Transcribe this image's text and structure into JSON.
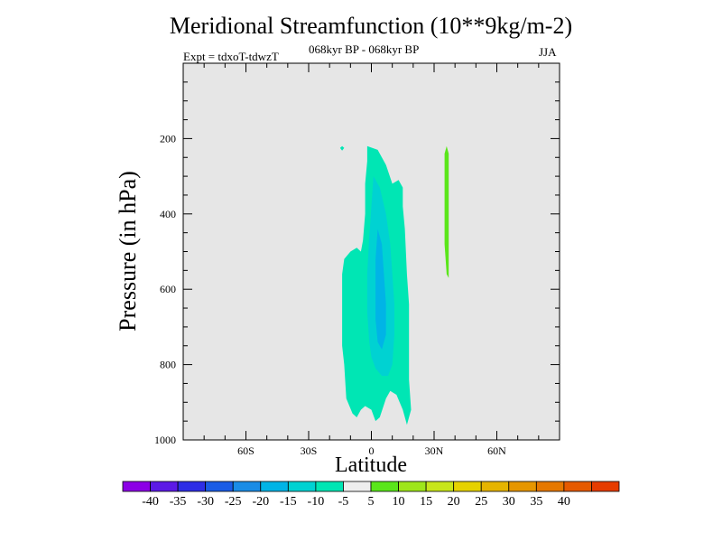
{
  "chart_data": {
    "type": "contour",
    "title": "Meridional Streamfunction (10**9kg/m-2)",
    "left_label": "Expt = tdxoT-tdwzT",
    "center_label": "068kyr BP - 068kyr BP",
    "right_label": "JJA",
    "xlabel": "Latitude",
    "ylabel": "Pressure (in hPa)",
    "xlim": [
      -90,
      90
    ],
    "ylim": [
      1000,
      0
    ],
    "y_inverted": true,
    "x_ticks": [
      {
        "value": -60,
        "label": "60S"
      },
      {
        "value": -30,
        "label": "30S"
      },
      {
        "value": 0,
        "label": "0"
      },
      {
        "value": 30,
        "label": "30N"
      },
      {
        "value": 60,
        "label": "60N"
      }
    ],
    "y_ticks": [
      {
        "value": 200,
        "label": "200"
      },
      {
        "value": 400,
        "label": "400"
      },
      {
        "value": 600,
        "label": "600"
      },
      {
        "value": 800,
        "label": "800"
      },
      {
        "value": 1000,
        "label": "1000"
      }
    ],
    "background_color": "#e6e6e6",
    "colorbar": {
      "colors": [
        "#8c00e6",
        "#5c1ae6",
        "#2e2ee6",
        "#1a5ce6",
        "#1a8ce6",
        "#00b4e6",
        "#00d2d2",
        "#00e6b4",
        "#eeeeee",
        "#5ae61a",
        "#9ee61a",
        "#c8e61a",
        "#e6d200",
        "#e6b400",
        "#e69600",
        "#e67800",
        "#e65a00",
        "#e63c00"
      ],
      "labels": [
        "-40",
        "-35",
        "-30",
        "-25",
        "-20",
        "-15",
        "-10",
        "-5",
        "5",
        "10",
        "15",
        "20",
        "25",
        "30",
        "35",
        "40"
      ]
    },
    "regions": [
      {
        "level": "-10 to -5",
        "color": "#00e6b4",
        "points": [
          [
            -2,
            220
          ],
          [
            3,
            230
          ],
          [
            7,
            270
          ],
          [
            10,
            320
          ],
          [
            13,
            310
          ],
          [
            15,
            330
          ],
          [
            15,
            380
          ],
          [
            16,
            440
          ],
          [
            17,
            560
          ],
          [
            18,
            640
          ],
          [
            18,
            740
          ],
          [
            18,
            840
          ],
          [
            19,
            920
          ],
          [
            17,
            960
          ],
          [
            15,
            920
          ],
          [
            12,
            880
          ],
          [
            9,
            870
          ],
          [
            7,
            890
          ],
          [
            4,
            940
          ],
          [
            2,
            950
          ],
          [
            0,
            920
          ],
          [
            -3,
            910
          ],
          [
            -5,
            920
          ],
          [
            -7,
            940
          ],
          [
            -9,
            930
          ],
          [
            -12,
            890
          ],
          [
            -13,
            800
          ],
          [
            -14,
            750
          ],
          [
            -14,
            650
          ],
          [
            -14,
            560
          ],
          [
            -13,
            520
          ],
          [
            -10,
            500
          ],
          [
            -7,
            490
          ],
          [
            -5,
            500
          ],
          [
            -4,
            470
          ],
          [
            -3,
            400
          ],
          [
            -3,
            320
          ],
          [
            -2,
            260
          ]
        ]
      },
      {
        "level": "-15 to -10",
        "color": "#00d2d2",
        "points": [
          [
            1,
            300
          ],
          [
            4,
            330
          ],
          [
            7,
            400
          ],
          [
            9,
            480
          ],
          [
            10,
            560
          ],
          [
            11,
            640
          ],
          [
            11,
            720
          ],
          [
            10,
            800
          ],
          [
            8,
            830
          ],
          [
            5,
            830
          ],
          [
            2,
            810
          ],
          [
            0,
            780
          ],
          [
            -1,
            740
          ],
          [
            -2,
            660
          ],
          [
            -2,
            560
          ],
          [
            -1,
            460
          ],
          [
            0,
            380
          ]
        ]
      },
      {
        "level": "-20 to -15",
        "color": "#00b4e6",
        "points": [
          [
            3,
            440
          ],
          [
            5,
            480
          ],
          [
            6,
            560
          ],
          [
            7,
            640
          ],
          [
            7,
            720
          ],
          [
            5,
            760
          ],
          [
            3,
            740
          ],
          [
            2,
            680
          ],
          [
            2,
            600
          ],
          [
            2,
            520
          ]
        ]
      },
      {
        "level": "-10 to -5",
        "color": "#00e6b4",
        "points": [
          [
            -15,
            225
          ],
          [
            -14,
            220
          ],
          [
            -13,
            225
          ],
          [
            -14,
            232
          ]
        ]
      },
      {
        "level": "5 to 10",
        "color": "#5ae61a",
        "points": [
          [
            36,
            220
          ],
          [
            37,
            240
          ],
          [
            37,
            480
          ],
          [
            37,
            570
          ],
          [
            36,
            560
          ],
          [
            35,
            480
          ],
          [
            35,
            240
          ]
        ]
      }
    ]
  }
}
